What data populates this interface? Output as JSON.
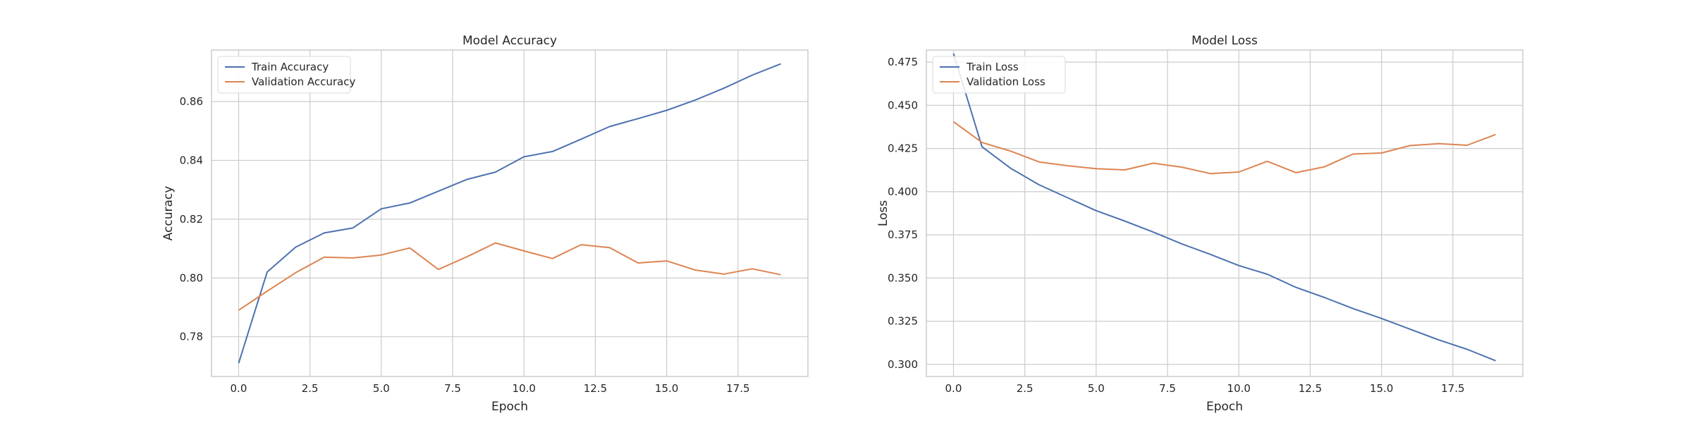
{
  "colors": {
    "train": "#4c72b0",
    "validation": "#dd8452",
    "grid": "#cccccc",
    "frame": "#cccccc",
    "text": "#262626"
  },
  "chart_data": [
    {
      "type": "line",
      "title": "Model Accuracy",
      "xlabel": "Epoch",
      "ylabel": "Accuracy",
      "xlim": [
        -0.95,
        19.95
      ],
      "ylim": [
        0.7665,
        0.8775
      ],
      "xticks": [
        0.0,
        2.5,
        5.0,
        7.5,
        10.0,
        12.5,
        15.0,
        17.5
      ],
      "xtick_labels": [
        "0.0",
        "2.5",
        "5.0",
        "7.5",
        "10.0",
        "12.5",
        "15.0",
        "17.5"
      ],
      "yticks": [
        0.78,
        0.8,
        0.82,
        0.84,
        0.86
      ],
      "ytick_labels": [
        "0.78",
        "0.80",
        "0.82",
        "0.84",
        "0.86"
      ],
      "grid": true,
      "legend_position": "upper-left",
      "x": [
        0,
        1,
        2,
        3,
        4,
        5,
        6,
        7,
        8,
        9,
        10,
        11,
        12,
        13,
        14,
        15,
        16,
        17,
        18,
        19
      ],
      "series": [
        {
          "name": "Train Accuracy",
          "color_key": "train",
          "values": [
            0.771,
            0.802,
            0.8105,
            0.8153,
            0.817,
            0.8235,
            0.8255,
            0.8295,
            0.8335,
            0.836,
            0.8412,
            0.843,
            0.8472,
            0.8515,
            0.8542,
            0.857,
            0.8605,
            0.8645,
            0.869,
            0.8728
          ]
        },
        {
          "name": "Validation Accuracy",
          "color_key": "validation",
          "values": [
            0.789,
            0.7955,
            0.8018,
            0.8071,
            0.8068,
            0.8078,
            0.8102,
            0.8029,
            0.8072,
            0.8119,
            0.8092,
            0.8066,
            0.8113,
            0.8103,
            0.8051,
            0.8058,
            0.8027,
            0.8013,
            0.8031,
            0.8011
          ]
        }
      ]
    },
    {
      "type": "line",
      "title": "Model Loss",
      "xlabel": "Epoch",
      "ylabel": "Loss",
      "xlim": [
        -0.95,
        19.95
      ],
      "ylim": [
        0.293,
        0.482
      ],
      "xticks": [
        0.0,
        2.5,
        5.0,
        7.5,
        10.0,
        12.5,
        15.0,
        17.5
      ],
      "xtick_labels": [
        "0.0",
        "2.5",
        "5.0",
        "7.5",
        "10.0",
        "12.5",
        "15.0",
        "17.5"
      ],
      "yticks": [
        0.3,
        0.325,
        0.35,
        0.375,
        0.4,
        0.425,
        0.45,
        0.475
      ],
      "ytick_labels": [
        "0.300",
        "0.325",
        "0.350",
        "0.375",
        "0.400",
        "0.425",
        "0.450",
        "0.475"
      ],
      "grid": true,
      "legend_position": "upper-left",
      "x": [
        0,
        1,
        2,
        3,
        4,
        5,
        6,
        7,
        8,
        9,
        10,
        11,
        12,
        13,
        14,
        15,
        16,
        17,
        18,
        19
      ],
      "series": [
        {
          "name": "Train Loss",
          "color_key": "train",
          "values": [
            0.48,
            0.426,
            0.4136,
            0.404,
            0.3965,
            0.389,
            0.383,
            0.3766,
            0.3698,
            0.3637,
            0.3572,
            0.3522,
            0.3446,
            0.3387,
            0.3323,
            0.3266,
            0.3204,
            0.3142,
            0.3087,
            0.3021
          ]
        },
        {
          "name": "Validation Loss",
          "color_key": "validation",
          "values": [
            0.4405,
            0.4285,
            0.4235,
            0.4172,
            0.415,
            0.4133,
            0.4126,
            0.4165,
            0.4142,
            0.4105,
            0.4114,
            0.4176,
            0.411,
            0.4144,
            0.4218,
            0.4224,
            0.4267,
            0.4278,
            0.4269,
            0.4331
          ]
        }
      ]
    }
  ]
}
